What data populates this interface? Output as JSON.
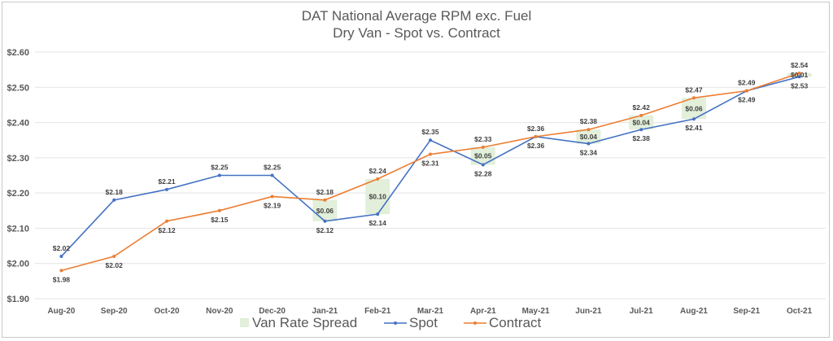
{
  "chart_data": {
    "type": "line",
    "title": "DAT National Average RPM exc. Fuel",
    "subtitle": "Dry Van - Spot vs. Contract",
    "categories": [
      "Aug-20",
      "Sep-20",
      "Oct-20",
      "Nov-20",
      "Dec-20",
      "Jan-21",
      "Feb-21",
      "Mar-21",
      "Apr-21",
      "May-21",
      "Jun-21",
      "Jul-21",
      "Aug-21",
      "Sep-21",
      "Oct-21"
    ],
    "ylim": [
      1.9,
      2.6
    ],
    "yticks": [
      "$1.90",
      "$2.00",
      "$2.10",
      "$2.20",
      "$2.30",
      "$2.40",
      "$2.50",
      "$2.60"
    ],
    "grid": true,
    "legend_position": "bottom",
    "series": [
      {
        "name": "Spot",
        "color": "#4472c4",
        "values": [
          2.02,
          2.18,
          2.21,
          2.25,
          2.25,
          2.12,
          2.14,
          2.35,
          2.28,
          2.36,
          2.34,
          2.38,
          2.41,
          2.49,
          2.53
        ],
        "labels": [
          "$2.02",
          "$2.18",
          "$2.21",
          "$2.25",
          "$2.25",
          "$2.12",
          "$2.14",
          "$2.35",
          "$2.28",
          "$2.36",
          "$2.34",
          "$2.38",
          "$2.41",
          "$2.49",
          "$2.53"
        ]
      },
      {
        "name": "Contract",
        "color": "#ed7d31",
        "values": [
          1.98,
          2.02,
          2.12,
          2.15,
          2.19,
          2.18,
          2.24,
          2.31,
          2.33,
          2.36,
          2.38,
          2.42,
          2.47,
          2.49,
          2.54
        ],
        "labels": [
          "$1.98",
          "$2.02",
          "$2.12",
          "$2.15",
          "$2.19",
          "$2.18",
          "$2.24",
          "$2.31",
          "$2.33",
          "$2.36",
          "$2.38",
          "$2.42",
          "$2.47",
          "$2.49",
          "$2.54"
        ]
      }
    ],
    "spread": {
      "name": "Van Rate Spread",
      "color": "#e2efda",
      "bars": [
        {
          "index": 5,
          "low": 2.12,
          "high": 2.18,
          "label": "$0.06"
        },
        {
          "index": 6,
          "low": 2.14,
          "high": 2.24,
          "label": "$0.10"
        },
        {
          "index": 8,
          "low": 2.28,
          "high": 2.33,
          "label": "$0.05"
        },
        {
          "index": 10,
          "low": 2.34,
          "high": 2.38,
          "label": "$0.04"
        },
        {
          "index": 11,
          "low": 2.38,
          "high": 2.42,
          "label": "$0.04"
        },
        {
          "index": 12,
          "low": 2.41,
          "high": 2.47,
          "label": "$0.06"
        },
        {
          "index": 14,
          "low": 2.53,
          "high": 2.54,
          "label": "$0.01"
        }
      ]
    },
    "legend": [
      "Van Rate Spread",
      "Spot",
      "Contract"
    ]
  }
}
